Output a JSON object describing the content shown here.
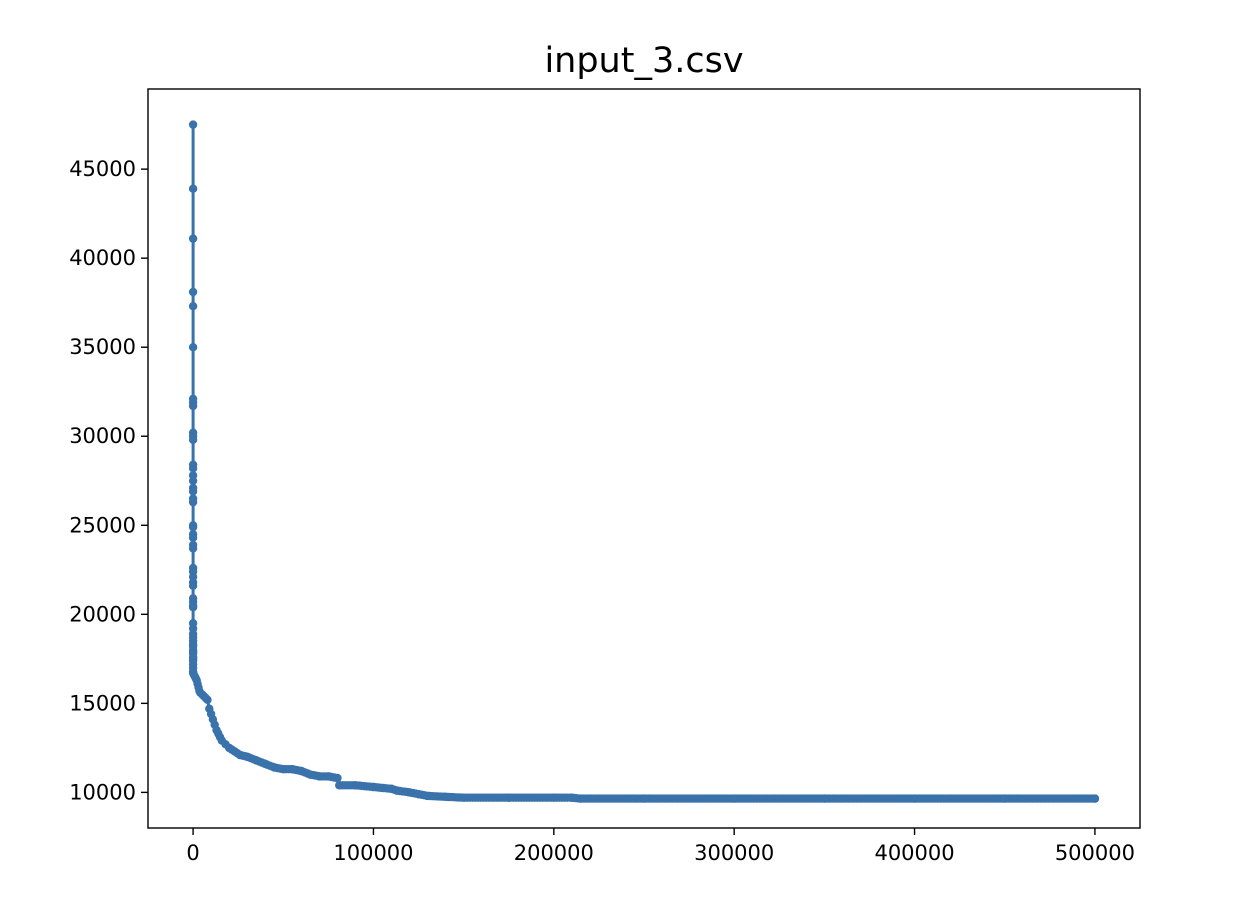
{
  "chart_data": {
    "type": "line",
    "title": "input_3.csv",
    "xlabel": "",
    "ylabel": "",
    "xlim": [
      -25000,
      525000
    ],
    "ylim": [
      8000,
      49500
    ],
    "xticks": [
      0,
      100000,
      200000,
      300000,
      400000,
      500000
    ],
    "xtick_labels": [
      "0",
      "100000",
      "200000",
      "300000",
      "400000",
      "500000"
    ],
    "yticks": [
      10000,
      15000,
      20000,
      25000,
      30000,
      35000,
      40000,
      45000
    ],
    "ytick_labels": [
      "10000",
      "15000",
      "20000",
      "25000",
      "30000",
      "35000",
      "40000",
      "45000"
    ],
    "grid": false,
    "marker": "circle",
    "series": [
      {
        "name": "",
        "color": "#3a72ab",
        "x": [
          0,
          0,
          0,
          0,
          0,
          0,
          0,
          0,
          0,
          0,
          0,
          0,
          0,
          0,
          0,
          0,
          0,
          0,
          0,
          0,
          0,
          0,
          0,
          0,
          0,
          0,
          0,
          0,
          0,
          0,
          0,
          0,
          0,
          0,
          0,
          0,
          0,
          0,
          0,
          0,
          0,
          0,
          0,
          0,
          0,
          0,
          0,
          0,
          0,
          0,
          0,
          0,
          500,
          1000,
          1500,
          2000,
          2500,
          3000,
          3500,
          4000,
          5000,
          6000,
          7000,
          8000,
          9000,
          10000,
          11000,
          12000,
          13000,
          14000,
          15000,
          16000,
          18000,
          20000,
          23000,
          26000,
          30000,
          35000,
          40000,
          45000,
          50000,
          55000,
          60000,
          65000,
          70000,
          75000,
          80000,
          81000,
          90000,
          100000,
          110000,
          113000,
          120000,
          125000,
          130000,
          140000,
          150000,
          175000,
          200000,
          210000,
          215000,
          250000,
          300000,
          350000,
          400000,
          450000,
          500000
        ],
        "values": [
          47500,
          43900,
          41100,
          38100,
          37300,
          35000,
          32100,
          31900,
          31700,
          30200,
          30000,
          29800,
          28400,
          28200,
          27800,
          27500,
          27100,
          26900,
          26500,
          26300,
          25000,
          24900,
          24500,
          24300,
          23900,
          23700,
          22600,
          22400,
          22100,
          21800,
          21600,
          20900,
          20700,
          20500,
          20400,
          19500,
          19200,
          18900,
          18700,
          18500,
          18300,
          18200,
          18000,
          17900,
          17800,
          17600,
          17500,
          17400,
          17200,
          17000,
          16800,
          16700,
          16600,
          16500,
          16400,
          16300,
          16100,
          15900,
          15700,
          15600,
          15500,
          15400,
          15300,
          15200,
          14700,
          14400,
          14100,
          13800,
          13500,
          13300,
          13100,
          12900,
          12700,
          12500,
          12300,
          12100,
          12000,
          11800,
          11600,
          11400,
          11300,
          11300,
          11200,
          11000,
          10900,
          10900,
          10800,
          10400,
          10400,
          10300,
          10200,
          10100,
          10000,
          9900,
          9800,
          9750,
          9700,
          9700,
          9700,
          9700,
          9650,
          9650,
          9650,
          9650,
          9650,
          9650,
          9650
        ]
      }
    ]
  }
}
